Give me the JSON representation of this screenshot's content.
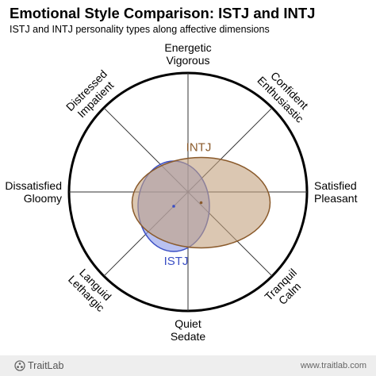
{
  "title": "Emotional Style Comparison: ISTJ and INTJ",
  "subtitle": "ISTJ and INTJ personality types along affective dimensions",
  "footer": {
    "brand": "TraitLab",
    "brand_icon": "traitlab-logo-icon",
    "url": "www.traitlab.com"
  },
  "chart_data": {
    "type": "radar-ellipse",
    "axes": [
      {
        "angle_deg": 90,
        "lines": [
          "Energetic",
          "Vigorous"
        ]
      },
      {
        "angle_deg": 45,
        "lines": [
          "Confident",
          "Enthusiastic"
        ]
      },
      {
        "angle_deg": 0,
        "lines": [
          "Satisfied",
          "Pleasant"
        ]
      },
      {
        "angle_deg": -45,
        "lines": [
          "Tranquil",
          "Calm"
        ]
      },
      {
        "angle_deg": -90,
        "lines": [
          "Quiet",
          "Sedate"
        ]
      },
      {
        "angle_deg": -135,
        "lines": [
          "Languid",
          "Lethargic"
        ]
      },
      {
        "angle_deg": 180,
        "lines": [
          "Dissatisfied",
          "Gloomy"
        ]
      },
      {
        "angle_deg": 135,
        "lines": [
          "Distressed",
          "Impatient"
        ]
      }
    ],
    "rings": 5,
    "series": [
      {
        "name": "ISTJ",
        "center": [
          -0.12,
          -0.12
        ],
        "radii": [
          0.3,
          0.38
        ],
        "fill": "#8b98e6",
        "stroke": "#3b4fc4",
        "label_color": "#3b4fc4"
      },
      {
        "name": "INTJ",
        "center": [
          0.11,
          -0.09
        ],
        "radii": [
          0.58,
          0.38
        ],
        "fill": "#c3a27e",
        "stroke": "#8a5a2b",
        "label_color": "#8a5a2b"
      }
    ]
  }
}
